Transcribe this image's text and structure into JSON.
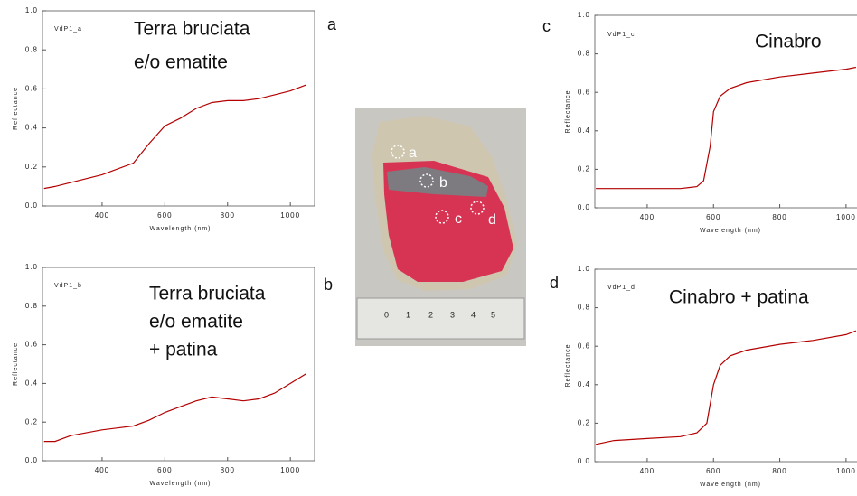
{
  "chart_data": [
    {
      "type": "line",
      "panel_label": "a",
      "inner_label": "VdP1_a",
      "annotations": [
        "Terra bruciata",
        "e/o ematite"
      ],
      "xlabel": "Wavelength (nm)",
      "ylabel": "Reflectance",
      "color": "#b40000",
      "xlim": [
        210,
        1060
      ],
      "xticks": [
        400,
        600,
        800,
        1000
      ],
      "ylim": [
        0,
        1
      ],
      "yticks": [
        {
          "value": 0,
          "label": "0.0"
        },
        0.2,
        0.4,
        0.6,
        0.8,
        {
          "value": 1,
          "label": "1.0"
        }
      ],
      "x": [
        215,
        250,
        300,
        400,
        500,
        550,
        600,
        650,
        700,
        750,
        800,
        850,
        900,
        950,
        1000,
        1050
      ],
      "series": [
        {
          "color": "#b40000",
          "values": [
            0.09,
            0.1,
            0.12,
            0.16,
            0.22,
            0.32,
            0.41,
            0.45,
            0.5,
            0.53,
            0.54,
            0.54,
            0.55,
            0.57,
            0.59,
            0.62
          ]
        }
      ]
    },
    {
      "type": "line",
      "panel_label": "b",
      "inner_label": "VdP1_b",
      "annotations": [
        "Terra bruciata",
        "e/o ematite",
        "+ patina"
      ],
      "xlabel": "Wavelength (nm)",
      "ylabel": "Reflectance",
      "color": "#b40000",
      "xlim": [
        210,
        1060
      ],
      "xticks": [
        400,
        600,
        800,
        1000
      ],
      "ylim": [
        0,
        1
      ],
      "yticks": [
        {
          "value": 0,
          "label": "0.0"
        },
        0.2,
        0.4,
        0.6,
        0.8,
        {
          "value": 1,
          "label": "1.0"
        }
      ],
      "x": [
        215,
        250,
        300,
        400,
        500,
        550,
        600,
        650,
        700,
        750,
        800,
        850,
        900,
        950,
        1000,
        1050
      ],
      "series": [
        {
          "color": "#b40000",
          "values": [
            0.1,
            0.1,
            0.13,
            0.16,
            0.18,
            0.21,
            0.25,
            0.28,
            0.31,
            0.33,
            0.32,
            0.31,
            0.32,
            0.35,
            0.4,
            0.45
          ]
        }
      ]
    },
    {
      "type": "line",
      "panel_label": "c",
      "inner_label": "VdP1_c",
      "annotations": [
        "Cinabro"
      ],
      "xlabel": "Wavelength (nm)",
      "ylabel": "Reflectance",
      "color": "#b40000",
      "xlim": [
        242,
        1033
      ],
      "xticks": [
        400,
        600,
        800,
        1000
      ],
      "ylim": [
        0,
        1
      ],
      "yticks": [
        {
          "value": 0,
          "label": "0.0"
        },
        0.2,
        0.4,
        0.6,
        0.8,
        {
          "value": 1,
          "label": "1.0"
        }
      ],
      "x": [
        245,
        300,
        400,
        500,
        550,
        570,
        590,
        600,
        620,
        650,
        700,
        800,
        900,
        1000,
        1030
      ],
      "series": [
        {
          "color": "#b40000",
          "values": [
            0.1,
            0.1,
            0.1,
            0.1,
            0.11,
            0.14,
            0.32,
            0.5,
            0.58,
            0.62,
            0.65,
            0.68,
            0.7,
            0.72,
            0.73
          ]
        }
      ]
    },
    {
      "type": "line",
      "panel_label": "d",
      "inner_label": "VdP1_d",
      "annotations": [
        "Cinabro + patina"
      ],
      "xlabel": "Wavelength (nm)",
      "ylabel": "Reflectance",
      "color": "#b40000",
      "xlim": [
        242,
        1033
      ],
      "xticks": [
        400,
        600,
        800,
        1000
      ],
      "ylim": [
        0,
        1
      ],
      "yticks": [
        {
          "value": 0,
          "label": "0.0"
        },
        0.2,
        0.4,
        0.6,
        0.8,
        {
          "value": 1,
          "label": "1.0"
        }
      ],
      "x": [
        245,
        300,
        400,
        500,
        550,
        580,
        600,
        620,
        650,
        700,
        800,
        900,
        1000,
        1030
      ],
      "series": [
        {
          "color": "#b40000",
          "values": [
            0.09,
            0.11,
            0.12,
            0.13,
            0.15,
            0.2,
            0.4,
            0.5,
            0.55,
            0.58,
            0.61,
            0.63,
            0.66,
            0.68
          ]
        }
      ]
    }
  ],
  "photo": {
    "labels": [
      "a",
      "b",
      "c",
      "d"
    ],
    "ruler_labels": [
      "0",
      "1",
      "2",
      "3",
      "4",
      "5"
    ]
  }
}
